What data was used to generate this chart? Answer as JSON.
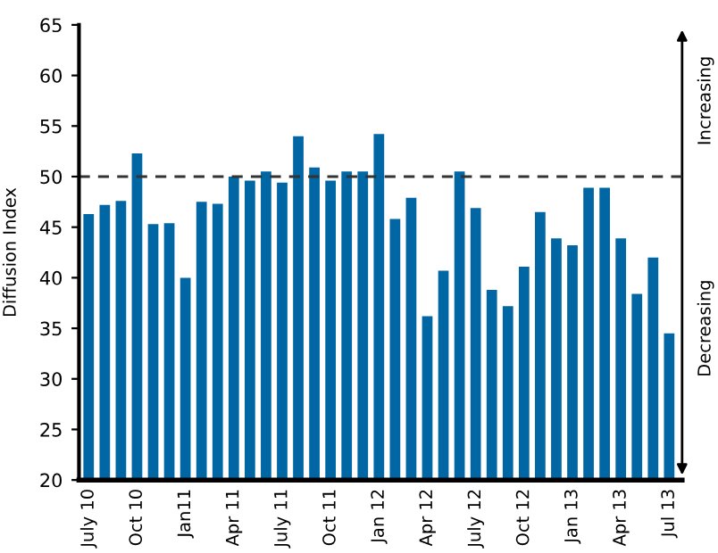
{
  "chart_data": {
    "type": "bar",
    "ylabel": "Diffusion Index",
    "categories": [
      "July 10",
      null,
      null,
      "Oct 10",
      null,
      null,
      "Jan11",
      null,
      null,
      "Apr 11",
      null,
      null,
      "July 11",
      null,
      null,
      "Oct 11",
      null,
      null,
      "Jan 12",
      null,
      null,
      "Apr 12",
      null,
      null,
      "July 12",
      null,
      null,
      "Oct 12",
      null,
      null,
      "Jan 13",
      null,
      null,
      "Apr 13",
      null,
      null,
      "Jul 13"
    ],
    "values": [
      46.3,
      47.2,
      47.6,
      52.3,
      45.3,
      45.4,
      40,
      47.5,
      47.3,
      50,
      49.6,
      50.5,
      49.4,
      54,
      50.9,
      49.6,
      50.5,
      50.5,
      54.2,
      45.8,
      47.9,
      36.2,
      40.7,
      50.5,
      46.9,
      38.8,
      37.2,
      41.1,
      46.5,
      43.9,
      43.2,
      48.9,
      48.9,
      43.9,
      38.4,
      42,
      34.5
    ],
    "color": "#0066a4",
    "ylim": [
      20,
      65
    ],
    "yticks": [
      20,
      25,
      30,
      35,
      40,
      45,
      50,
      55,
      60,
      65
    ],
    "grid": false,
    "ref_lines": [
      {
        "axis": "y",
        "value": 50,
        "label": null,
        "color": "#333333",
        "line_style": "dashed"
      }
    ],
    "annotations": [
      "Increasing",
      "Decreasing"
    ]
  }
}
